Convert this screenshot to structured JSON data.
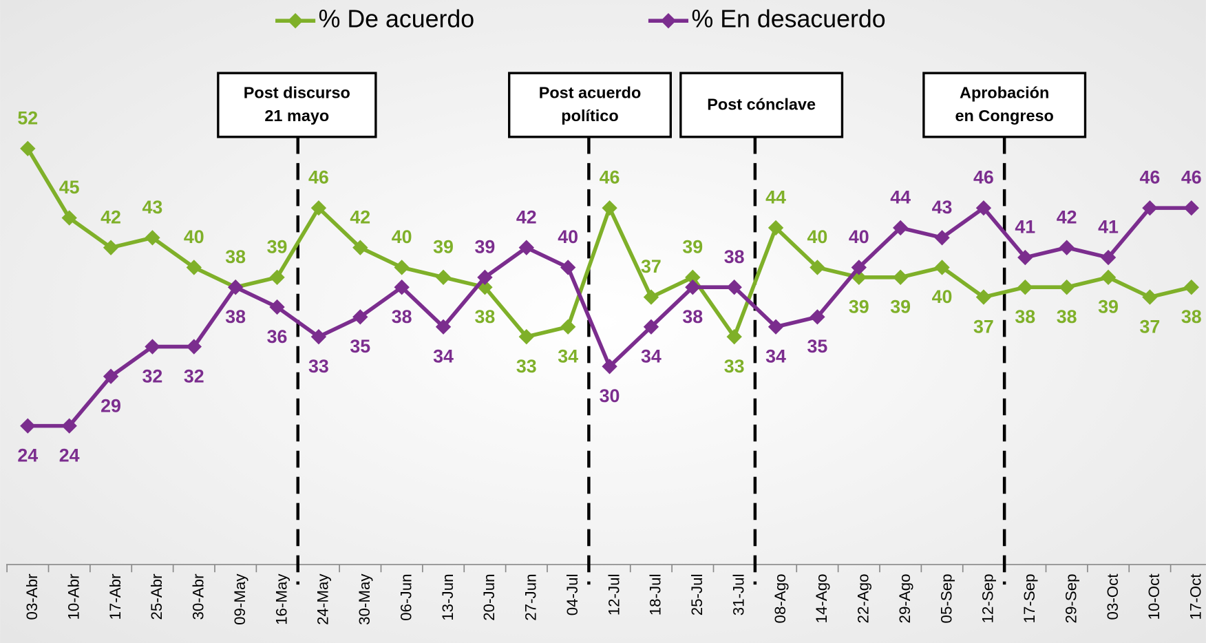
{
  "chart_data": {
    "type": "line",
    "categories": [
      "03-Abr",
      "10-Abr",
      "17-Abr",
      "25-Abr",
      "30-Abr",
      "09-May",
      "16-May",
      "24-May",
      "30-May",
      "06-Jun",
      "13-Jun",
      "20-Jun",
      "27-Jun",
      "04-Jul",
      "12-Jul",
      "18-Jul",
      "25-Jul",
      "31-Jul",
      "08-Ago",
      "14-Ago",
      "22-Ago",
      "29-Ago",
      "05-Sep",
      "12-Sep",
      "17-Sep",
      "29-Sep",
      "03-Oct",
      "10-Oct",
      "17-Oct"
    ],
    "series": [
      {
        "name": "% De acuerdo",
        "color": "#7fb029",
        "values": [
          52,
          45,
          42,
          43,
          40,
          38,
          39,
          46,
          42,
          40,
          39,
          38,
          33,
          34,
          46,
          37,
          39,
          33,
          44,
          40,
          39,
          39,
          40,
          37,
          38,
          38,
          39,
          37,
          38
        ]
      },
      {
        "name": "% En desacuerdo",
        "color": "#7b2d8e",
        "values": [
          24,
          24,
          29,
          32,
          32,
          38,
          36,
          33,
          35,
          38,
          34,
          39,
          42,
          40,
          30,
          34,
          38,
          38,
          34,
          35,
          40,
          44,
          43,
          46,
          41,
          42,
          41,
          46,
          46
        ]
      }
    ],
    "ylim": [
      10,
      67
    ],
    "annotations": [
      {
        "lines": [
          "Post discurso",
          "21 mayo"
        ]
      },
      {
        "lines": [
          "Post acuerdo",
          "político"
        ]
      },
      {
        "lines": [
          "Post cónclave"
        ]
      },
      {
        "lines": [
          "Aprobación",
          "en Congreso"
        ]
      }
    ]
  }
}
